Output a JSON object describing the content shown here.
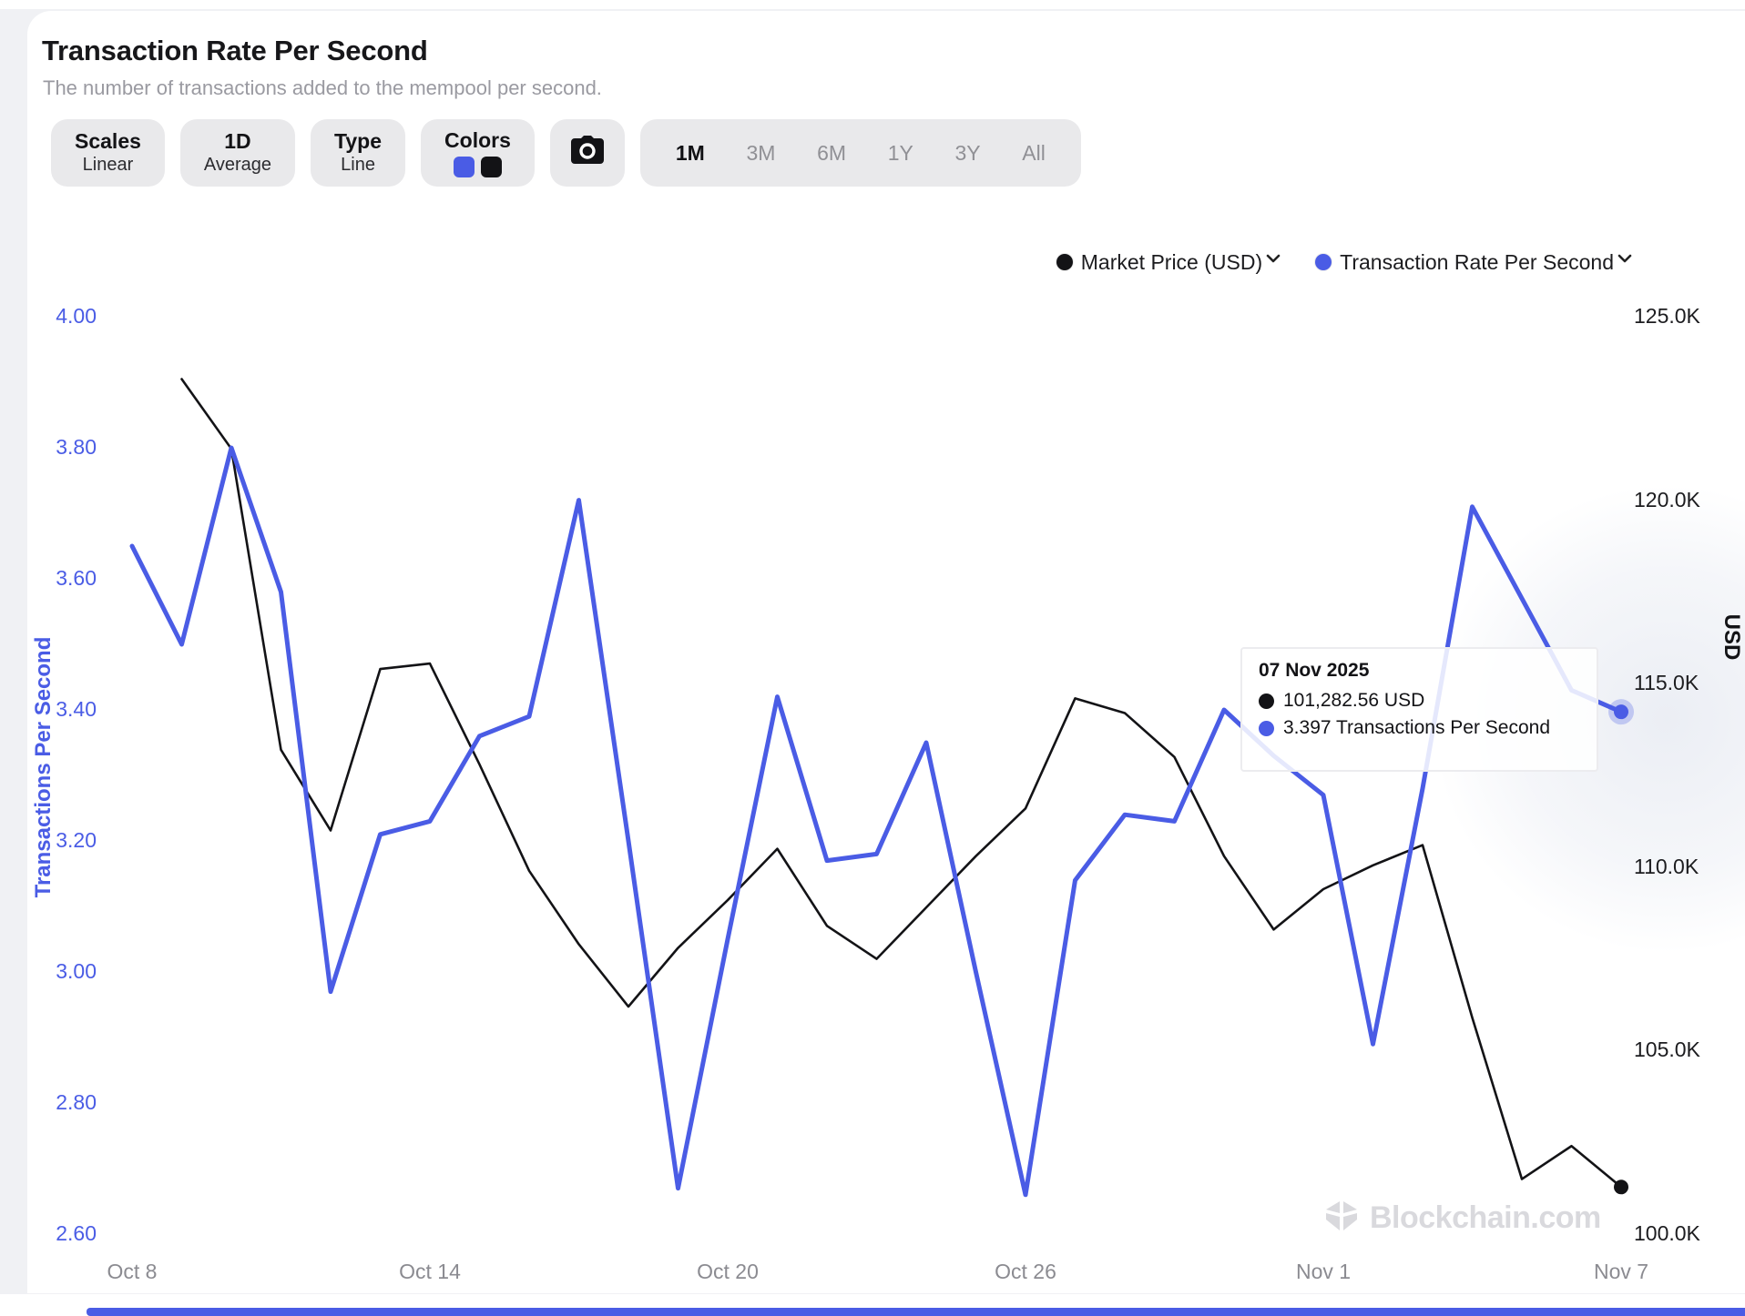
{
  "header": {
    "title": "Transaction Rate Per Second",
    "subtitle": "The number of transactions added to the mempool per second."
  },
  "toolbar": {
    "scales": {
      "label": "Scales",
      "value": "Linear"
    },
    "average": {
      "label": "1D",
      "value": "Average"
    },
    "type": {
      "label": "Type",
      "value": "Line"
    },
    "colors_label": "Colors",
    "ranges": [
      "1M",
      "3M",
      "6M",
      "1Y",
      "3Y",
      "All"
    ],
    "active_range": "1M"
  },
  "legend": [
    {
      "label": "Market Price (USD)",
      "color": "#131316"
    },
    {
      "label": "Transaction Rate Per Second",
      "color": "#4a5ce5"
    }
  ],
  "tooltip": {
    "date": "07 Nov 2025",
    "rows": [
      {
        "color": "#131316",
        "text": "101,282.56 USD"
      },
      {
        "color": "#4a5ce5",
        "text": "3.397 Transactions Per Second"
      }
    ]
  },
  "watermark": "Blockchain.com",
  "theme": {
    "accent": "#4a5ce5",
    "black_series": "#131316",
    "x_label_color": "#8b8b91",
    "pill_bg": "#e9e9eb"
  },
  "chart_data": {
    "type": "line",
    "x": [
      "Oct 8",
      "Oct 9",
      "Oct 10",
      "Oct 11",
      "Oct 12",
      "Oct 13",
      "Oct 14",
      "Oct 15",
      "Oct 16",
      "Oct 17",
      "Oct 18",
      "Oct 19",
      "Oct 20",
      "Oct 21",
      "Oct 22",
      "Oct 23",
      "Oct 24",
      "Oct 25",
      "Oct 26",
      "Oct 27",
      "Oct 28",
      "Oct 29",
      "Oct 30",
      "Oct 31",
      "Nov 1",
      "Nov 2",
      "Nov 3",
      "Nov 4",
      "Nov 5",
      "Nov 6",
      "Nov 7"
    ],
    "x_tick_labels": [
      "Oct 8",
      "Oct 14",
      "Oct 20",
      "Oct 26",
      "Nov 1",
      "Nov 7"
    ],
    "left_axis": {
      "title": "Transactions Per Second",
      "min": 2.6,
      "max": 4.0,
      "ticks": [
        "4.00",
        "3.80",
        "3.60",
        "3.40",
        "3.20",
        "3.00",
        "2.80",
        "2.60"
      ]
    },
    "right_axis": {
      "title": "USD",
      "min": 100000,
      "max": 125000,
      "ticks": [
        "125.0K",
        "120.0K",
        "115.0K",
        "110.0K",
        "105.0K",
        "100.0K"
      ]
    },
    "grid": false,
    "legend_position": "top-right",
    "series": [
      {
        "name": "Market Price (USD)",
        "axis": "right",
        "color": "#131316",
        "values": [
          null,
          123300,
          121400,
          113200,
          111000,
          115400,
          115550,
          112800,
          109900,
          107900,
          106200,
          107800,
          109100,
          110500,
          108400,
          107500,
          108900,
          110300,
          111600,
          114600,
          114200,
          113000,
          110300,
          108300,
          109400,
          110050,
          110600,
          105900,
          101500,
          102400,
          101282.56
        ]
      },
      {
        "name": "Transaction Rate Per Second",
        "axis": "left",
        "color": "#4a5ce5",
        "values": [
          3.65,
          3.5,
          3.8,
          3.58,
          2.97,
          3.21,
          3.23,
          3.36,
          3.39,
          3.72,
          3.2,
          2.67,
          3.05,
          3.42,
          3.17,
          3.18,
          3.35,
          3.0,
          2.66,
          3.14,
          3.24,
          3.23,
          3.4,
          3.33,
          3.27,
          2.89,
          3.28,
          3.71,
          3.57,
          3.43,
          3.397
        ]
      }
    ]
  }
}
